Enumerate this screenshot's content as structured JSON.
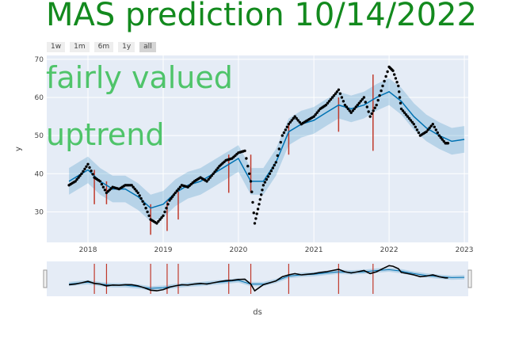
{
  "title": "MAS prediction 10/14/2022",
  "annotations": [
    "fairly valued",
    "uptrend"
  ],
  "range_selector": {
    "buttons": [
      "1w",
      "1m",
      "6m",
      "1y",
      "all"
    ],
    "active": "all"
  },
  "colors": {
    "title": "#138a1e",
    "annotation": "#4fc46a",
    "plot_bg": "#e5ecf6",
    "forecast_line": "#0072B2",
    "band": "#0072B2",
    "observed": "#000000",
    "changepoint": "#c0392b"
  },
  "chart_data": {
    "type": "line",
    "title": "MAS prediction 10/14/2022",
    "xlabel": "ds",
    "ylabel": "y",
    "xlim": [
      "2017-06-15",
      "2023-01-20"
    ],
    "ylim": [
      22,
      71
    ],
    "y_ticks": [
      30,
      40,
      50,
      60,
      70
    ],
    "x_ticks": [
      "2018",
      "2019",
      "2020",
      "2021",
      "2022",
      "2023"
    ],
    "grid": true,
    "legend": "none",
    "series": [
      {
        "role": "observed",
        "marker": "dots",
        "points": [
          [
            "2017-10-01",
            37
          ],
          [
            "2017-11-01",
            38
          ],
          [
            "2017-12-01",
            40
          ],
          [
            "2018-01-01",
            42.5
          ],
          [
            "2018-02-01",
            39
          ],
          [
            "2018-03-01",
            38
          ],
          [
            "2018-04-01",
            35
          ],
          [
            "2018-05-01",
            36.5
          ],
          [
            "2018-06-01",
            36
          ],
          [
            "2018-07-01",
            37
          ],
          [
            "2018-08-01",
            37
          ],
          [
            "2018-09-01",
            35
          ],
          [
            "2018-10-01",
            32
          ],
          [
            "2018-11-01",
            28
          ],
          [
            "2018-12-01",
            27
          ],
          [
            "2019-01-01",
            29
          ],
          [
            "2019-02-01",
            33
          ],
          [
            "2019-03-01",
            35
          ],
          [
            "2019-04-01",
            37
          ],
          [
            "2019-05-01",
            36.5
          ],
          [
            "2019-06-01",
            38
          ],
          [
            "2019-07-01",
            39
          ],
          [
            "2019-08-01",
            38
          ],
          [
            "2019-09-01",
            40
          ],
          [
            "2019-10-01",
            42
          ],
          [
            "2019-11-01",
            43.5
          ],
          [
            "2019-12-01",
            44
          ],
          [
            "2020-01-01",
            45.5
          ],
          [
            "2020-02-01",
            46
          ],
          [
            "2020-03-01",
            38
          ],
          [
            "2020-03-20",
            27
          ],
          [
            "2020-04-10",
            32
          ],
          [
            "2020-05-01",
            37
          ],
          [
            "2020-06-01",
            40
          ],
          [
            "2020-07-01",
            43
          ],
          [
            "2020-08-01",
            50
          ],
          [
            "2020-09-01",
            53
          ],
          [
            "2020-10-01",
            55
          ],
          [
            "2020-11-01",
            53
          ],
          [
            "2020-12-01",
            54
          ],
          [
            "2021-01-01",
            55
          ],
          [
            "2021-02-01",
            57
          ],
          [
            "2021-03-01",
            58
          ],
          [
            "2021-04-01",
            60
          ],
          [
            "2021-05-01",
            62
          ],
          [
            "2021-06-01",
            58
          ],
          [
            "2021-07-01",
            56
          ],
          [
            "2021-08-01",
            58
          ],
          [
            "2021-09-01",
            60
          ],
          [
            "2021-10-01",
            55
          ],
          [
            "2021-11-01",
            58
          ],
          [
            "2021-12-01",
            63
          ],
          [
            "2022-01-01",
            68
          ],
          [
            "2022-01-20",
            67
          ],
          [
            "2022-02-15",
            63
          ],
          [
            "2022-03-01",
            57
          ],
          [
            "2022-04-01",
            55
          ],
          [
            "2022-05-01",
            53
          ],
          [
            "2022-06-01",
            50
          ],
          [
            "2022-07-01",
            51
          ],
          [
            "2022-08-01",
            53
          ],
          [
            "2022-09-01",
            50
          ],
          [
            "2022-10-01",
            48
          ],
          [
            "2022-10-14",
            48
          ]
        ]
      },
      {
        "role": "forecast",
        "points": [
          [
            "2017-10-01",
            38
          ],
          [
            "2017-12-01",
            40
          ],
          [
            "2018-01-01",
            41
          ],
          [
            "2018-03-01",
            38
          ],
          [
            "2018-05-01",
            36
          ],
          [
            "2018-07-01",
            36
          ],
          [
            "2018-09-01",
            34
          ],
          [
            "2018-11-01",
            31
          ],
          [
            "2019-01-01",
            32
          ],
          [
            "2019-03-01",
            35
          ],
          [
            "2019-05-01",
            37
          ],
          [
            "2019-07-01",
            38
          ],
          [
            "2019-09-01",
            40
          ],
          [
            "2019-11-01",
            42
          ],
          [
            "2020-01-01",
            44
          ],
          [
            "2020-03-01",
            38
          ],
          [
            "2020-05-01",
            38
          ],
          [
            "2020-07-01",
            43
          ],
          [
            "2020-09-01",
            51
          ],
          [
            "2020-11-01",
            53
          ],
          [
            "2021-01-01",
            54
          ],
          [
            "2021-03-01",
            56
          ],
          [
            "2021-05-01",
            58
          ],
          [
            "2021-07-01",
            57
          ],
          [
            "2021-09-01",
            58
          ],
          [
            "2021-11-01",
            60
          ],
          [
            "2022-01-01",
            61.5
          ],
          [
            "2022-03-01",
            59
          ],
          [
            "2022-05-01",
            55
          ],
          [
            "2022-07-01",
            52
          ],
          [
            "2022-09-01",
            50
          ],
          [
            "2022-11-01",
            48.5
          ],
          [
            "2023-01-01",
            49
          ]
        ]
      }
    ],
    "band_half_width": 3.5,
    "changepoints": [
      [
        "2018-02-01",
        32,
        41
      ],
      [
        "2018-04-01",
        32,
        38
      ],
      [
        "2018-11-01",
        24,
        32
      ],
      [
        "2019-01-20",
        25,
        33
      ],
      [
        "2019-03-15",
        28,
        36
      ],
      [
        "2019-11-15",
        35,
        45
      ],
      [
        "2020-03-01",
        35,
        45
      ],
      [
        "2020-09-01",
        45,
        53
      ],
      [
        "2021-05-01",
        51,
        60
      ],
      [
        "2021-10-15",
        46,
        66
      ]
    ]
  }
}
